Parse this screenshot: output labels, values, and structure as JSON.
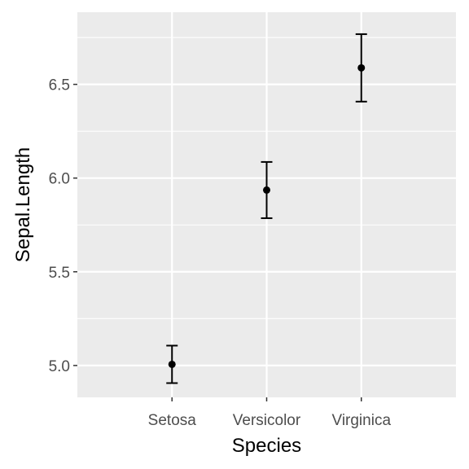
{
  "chart_data": {
    "type": "scatter",
    "title": "",
    "xlabel": "Species",
    "ylabel": "Sepal.Length",
    "categories": [
      "Setosa",
      "Versicolor",
      "Virginica"
    ],
    "series": [
      {
        "values": [
          5.006,
          5.936,
          6.588
        ],
        "error_low": [
          4.906,
          5.786,
          6.408
        ],
        "error_high": [
          5.106,
          6.086,
          6.768
        ]
      }
    ],
    "yticks": [
      5.0,
      5.5,
      6.0,
      6.5
    ],
    "ytick_labels": [
      "5.0",
      "5.5",
      "6.0",
      "6.5"
    ],
    "ylim": [
      4.83,
      6.885
    ],
    "grid": true,
    "legend": "none",
    "colors": {
      "panel_background": "#ebebeb",
      "grid": "#ffffff",
      "points": "#000000"
    }
  }
}
